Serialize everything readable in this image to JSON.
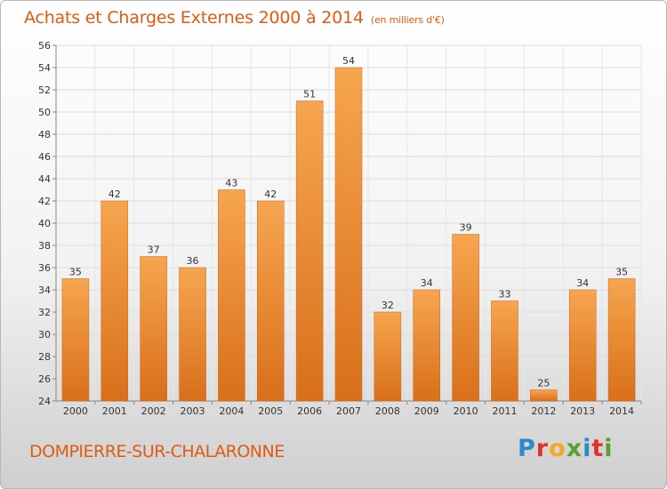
{
  "header": {
    "title": "Achats et Charges Externes 2000 à 2014",
    "subtitle": "(en milliers d'€)"
  },
  "footer": {
    "city": "DOMPIERRE-SUR-CHALARONNE",
    "logo": "Proxiti"
  },
  "colors": {
    "bar_light": "#f7a54f",
    "bar_dark": "#d96f1a",
    "title": "#e05a10",
    "grid": "#dddddd"
  },
  "chart_data": {
    "type": "bar",
    "title": "Achats et Charges Externes 2000 à 2014",
    "subtitle": "(en milliers d'€)",
    "categories": [
      "2000",
      "2001",
      "2002",
      "2003",
      "2004",
      "2005",
      "2006",
      "2007",
      "2008",
      "2009",
      "2010",
      "2011",
      "2012",
      "2013",
      "2014"
    ],
    "values": [
      35,
      42,
      37,
      36,
      43,
      42,
      51,
      54,
      32,
      34,
      39,
      33,
      25,
      34,
      35
    ],
    "ylim": [
      24,
      56
    ],
    "yticks": [
      24,
      26,
      28,
      30,
      32,
      34,
      36,
      38,
      40,
      42,
      44,
      46,
      48,
      50,
      52,
      54,
      56
    ],
    "grid": true,
    "data_labels": true
  }
}
